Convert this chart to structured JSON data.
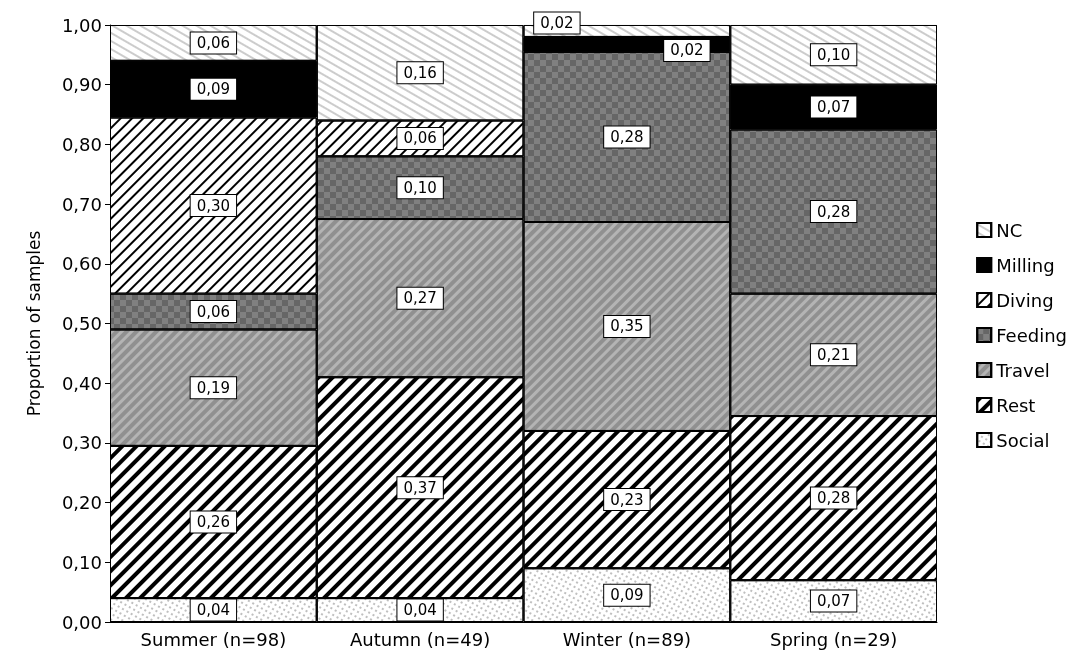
{
  "chart_data": {
    "type": "bar",
    "stacked": true,
    "ylabel": "Proportion of samples",
    "categories": [
      "Summer (n=98)",
      "Autumn (n=49)",
      "Winter (n=89)",
      "Spring (n=29)"
    ],
    "series": [
      {
        "name": "Social",
        "color": "#ffffff",
        "values": [
          0.04,
          0.04,
          0.09,
          0.07
        ],
        "value_labels": [
          "0,04",
          "0,04",
          "0,09",
          "0,07"
        ]
      },
      {
        "name": "Rest",
        "color": "#ffffff",
        "values": [
          0.255,
          0.37,
          0.23,
          0.275
        ],
        "value_labels": [
          "0,26",
          "0,37",
          "0,23",
          "0,28"
        ]
      },
      {
        "name": "Travel",
        "color": "#b4b4b4",
        "values": [
          0.195,
          0.265,
          0.35,
          0.205
        ],
        "value_labels": [
          "0,19",
          "0,27",
          "0,35",
          "0,21"
        ]
      },
      {
        "name": "Feeding",
        "color": "#808080",
        "values": [
          0.06,
          0.105,
          0.285,
          0.275
        ],
        "value_labels": [
          "0,06",
          "0,10",
          "0,28",
          "0,28"
        ]
      },
      {
        "name": "Diving",
        "color": "#ffffff",
        "values": [
          0.295,
          0.06,
          null,
          null
        ],
        "value_labels": [
          "0,30",
          "0,06",
          null,
          null
        ]
      },
      {
        "name": "Milling",
        "color": "#000000",
        "values": [
          0.095,
          null,
          0.025,
          0.075
        ],
        "value_labels": [
          "0,09",
          null,
          "0,02",
          "0,07"
        ]
      },
      {
        "name": "NC",
        "color": "#ffffff",
        "values": [
          0.06,
          0.16,
          0.02,
          0.1
        ],
        "value_labels": [
          "0,06",
          "0,16",
          "0,02",
          "0,10"
        ]
      }
    ],
    "ylim": [
      0,
      1
    ],
    "yticks": [
      {
        "value": 0,
        "label": "0,00"
      },
      {
        "value": 0.1,
        "label": "0,10"
      },
      {
        "value": 0.2,
        "label": "0,20"
      },
      {
        "value": 0.3,
        "label": "0,30"
      },
      {
        "value": 0.4,
        "label": "0,40"
      },
      {
        "value": 0.5,
        "label": "0,50"
      },
      {
        "value": 0.6,
        "label": "0,60"
      },
      {
        "value": 0.7,
        "label": "0,70"
      },
      {
        "value": 0.8,
        "label": "0,80"
      },
      {
        "value": 0.9,
        "label": "0,90"
      },
      {
        "value": 1,
        "label": "1,00"
      }
    ],
    "legend": "right",
    "grid": false
  }
}
